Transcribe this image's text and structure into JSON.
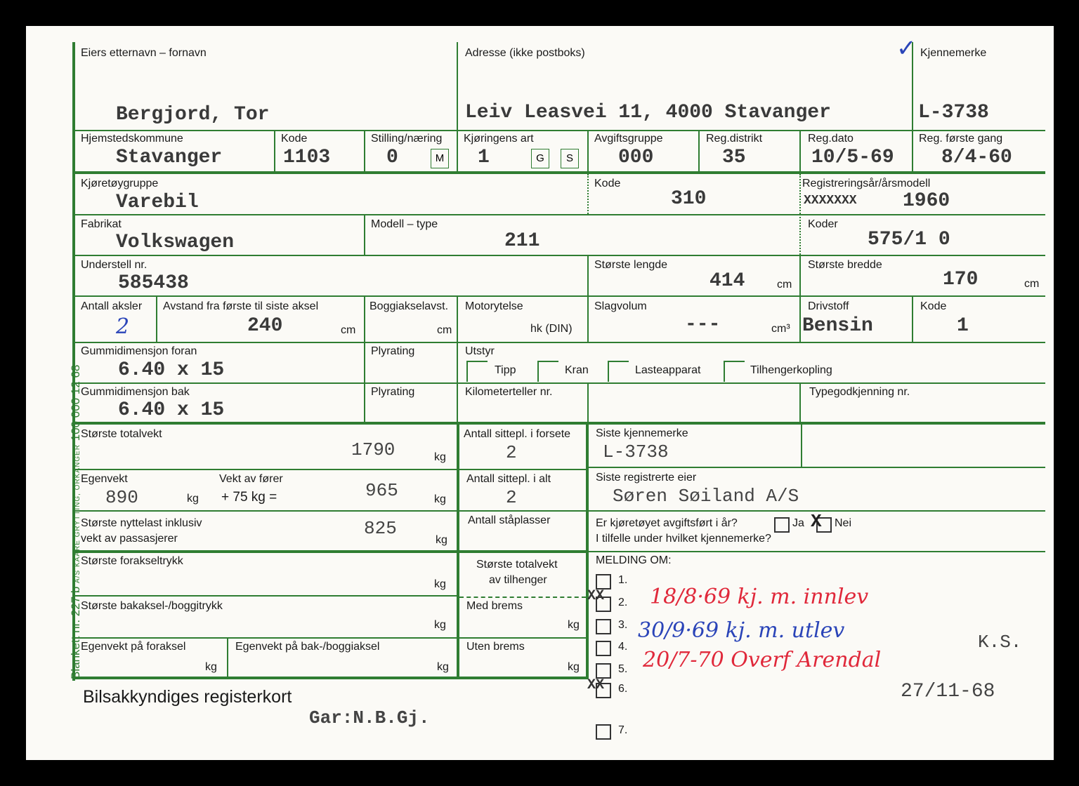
{
  "colors": {
    "form_green": "#2f7d32",
    "red_ink": "#e0283a",
    "blue_ink": "#2a44b8"
  },
  "side_print": {
    "main": "Blankett nr. 227 b",
    "small": "A/S KAARE GRYTTING, ORKANGER",
    "run": "100 000 12 68"
  },
  "row1": {
    "owner_label": "Eiers etternavn – fornavn",
    "owner": "Bergjord,  Tor",
    "address_label": "Adresse (ikke postboks)",
    "address": "Leiv Leasvei 11, 4000 Stavanger",
    "plate_label": "Kjennemerke",
    "plate": "L-3738",
    "check": "✓"
  },
  "row2": {
    "kommune_label": "Hjemstedskommune",
    "kommune": "Stavanger",
    "kode_label": "Kode",
    "kode": "1103",
    "stilling_label": "Stilling/næring",
    "stilling": "0",
    "m": "M",
    "art_label": "Kjøringens art",
    "art": "1",
    "g": "G",
    "s": "S",
    "avgift_label": "Avgiftsgruppe",
    "avgift": "000",
    "distrikt_label": "Reg.distrikt",
    "distrikt": "35",
    "regdato_label": "Reg.dato",
    "regdato": "10/5-69",
    "forste_label": "Reg. første gang",
    "forste": "8/4-60"
  },
  "row3": {
    "gruppe_label": "Kjøretøygruppe",
    "gruppe": "Varebil",
    "kode_label": "Kode",
    "kode": "310",
    "aar_label": "Registreringsår/årsmodell",
    "aar_strike": "XXXXXXX",
    "aar": "1960"
  },
  "row4": {
    "fabrikat_label": "Fabrikat",
    "fabrikat": "Volkswagen",
    "modell_label": "Modell – type",
    "modell": "211",
    "koder_label": "Koder",
    "koder": "575/1 0"
  },
  "row5": {
    "understell_label": "Understell nr.",
    "understell": "585438",
    "lengde_label": "Største lengde",
    "lengde": "414",
    "bredde_label": "Største bredde",
    "bredde": "170",
    "cm": "cm"
  },
  "row6": {
    "aksler_label": "Antall aksler",
    "aksler": "2",
    "avstand_label": "Avstand fra første til siste aksel",
    "avstand": "240",
    "boggi_label": "Boggiakselavst.",
    "motor_label": "Motorytelse",
    "hk": "hk (DIN)",
    "slag_label": "Slagvolum",
    "slag": "---",
    "cm3": "cm³",
    "drivstoff_label": "Drivstoff",
    "drivstoff": "Bensin",
    "kode_label": "Kode",
    "kode": "1",
    "cm": "cm"
  },
  "row7": {
    "foran_label": "Gummidimensjon foran",
    "foran": "6.40 x 15",
    "ply_label": "Plyrating",
    "utstyr_label": "Utstyr",
    "utstyr": [
      "Tipp",
      "Kran",
      "Lasteapparat",
      "Tilhengerkopling"
    ]
  },
  "row8": {
    "bak_label": "Gummidimensjon bak",
    "bak": "6.40 x 15",
    "ply_label": "Plyrating",
    "km_label": "Kilometerteller nr.",
    "type_label": "Typegodkjenning nr."
  },
  "weights": {
    "kg": "kg",
    "total_label": "Største totalvekt",
    "total": "1790",
    "egen_label": "Egenvekt",
    "egen": "890",
    "forer_label": "Vekt av fører",
    "forer_formula": "+ 75 kg =",
    "sum": "965",
    "nytte_label1": "Største nyttelast inklusiv",
    "nytte_label2": "vekt av passasjerer",
    "nytte": "825",
    "fora_label": "Største forakseltrykk",
    "baka_label": "Største bakaksel-/boggitrykk",
    "egen_fora_label": "Egenvekt på foraksel",
    "egen_baka_label": "Egenvekt på bak-/boggiaksel"
  },
  "seats": {
    "forsete_label": "Antall sittepl. i forsete",
    "forsete": "2",
    "alt_label": "Antall sittepl. i alt",
    "alt": "2",
    "staa_label": "Antall ståplasser",
    "tilh_label1": "Største totalvekt",
    "tilh_label2": "av tilhenger",
    "med_label": "Med brems",
    "uten_label": "Uten brems"
  },
  "right": {
    "siste_label": "Siste kjennemerke",
    "siste": "L-3738",
    "eier_label": "Siste registrerte eier",
    "eier": "Søren Søiland A/S",
    "avgift_q": "Er kjøretøyet avgiftsført i år?",
    "ja": "Ja",
    "nei": "Nei",
    "x": "X",
    "kjenn_q": "I tilfelle under hvilket kjennemerke?",
    "melding_label": "MELDING OM:",
    "items": [
      "1.",
      "2.",
      "3.",
      "4.",
      "5.",
      "6.",
      "7."
    ],
    "xx": "XX"
  },
  "notes": {
    "red1": "18/8·69  kj. m. innlev",
    "blue1": "30/9·69  kj. m. utlev",
    "ks": "K.S.",
    "red2": "20/7-70 Overf Arendal",
    "date": "27/11-68"
  },
  "footer": {
    "title": "Bilsakkyndiges registerkort",
    "gar": "Gar:N.B.Gj."
  }
}
